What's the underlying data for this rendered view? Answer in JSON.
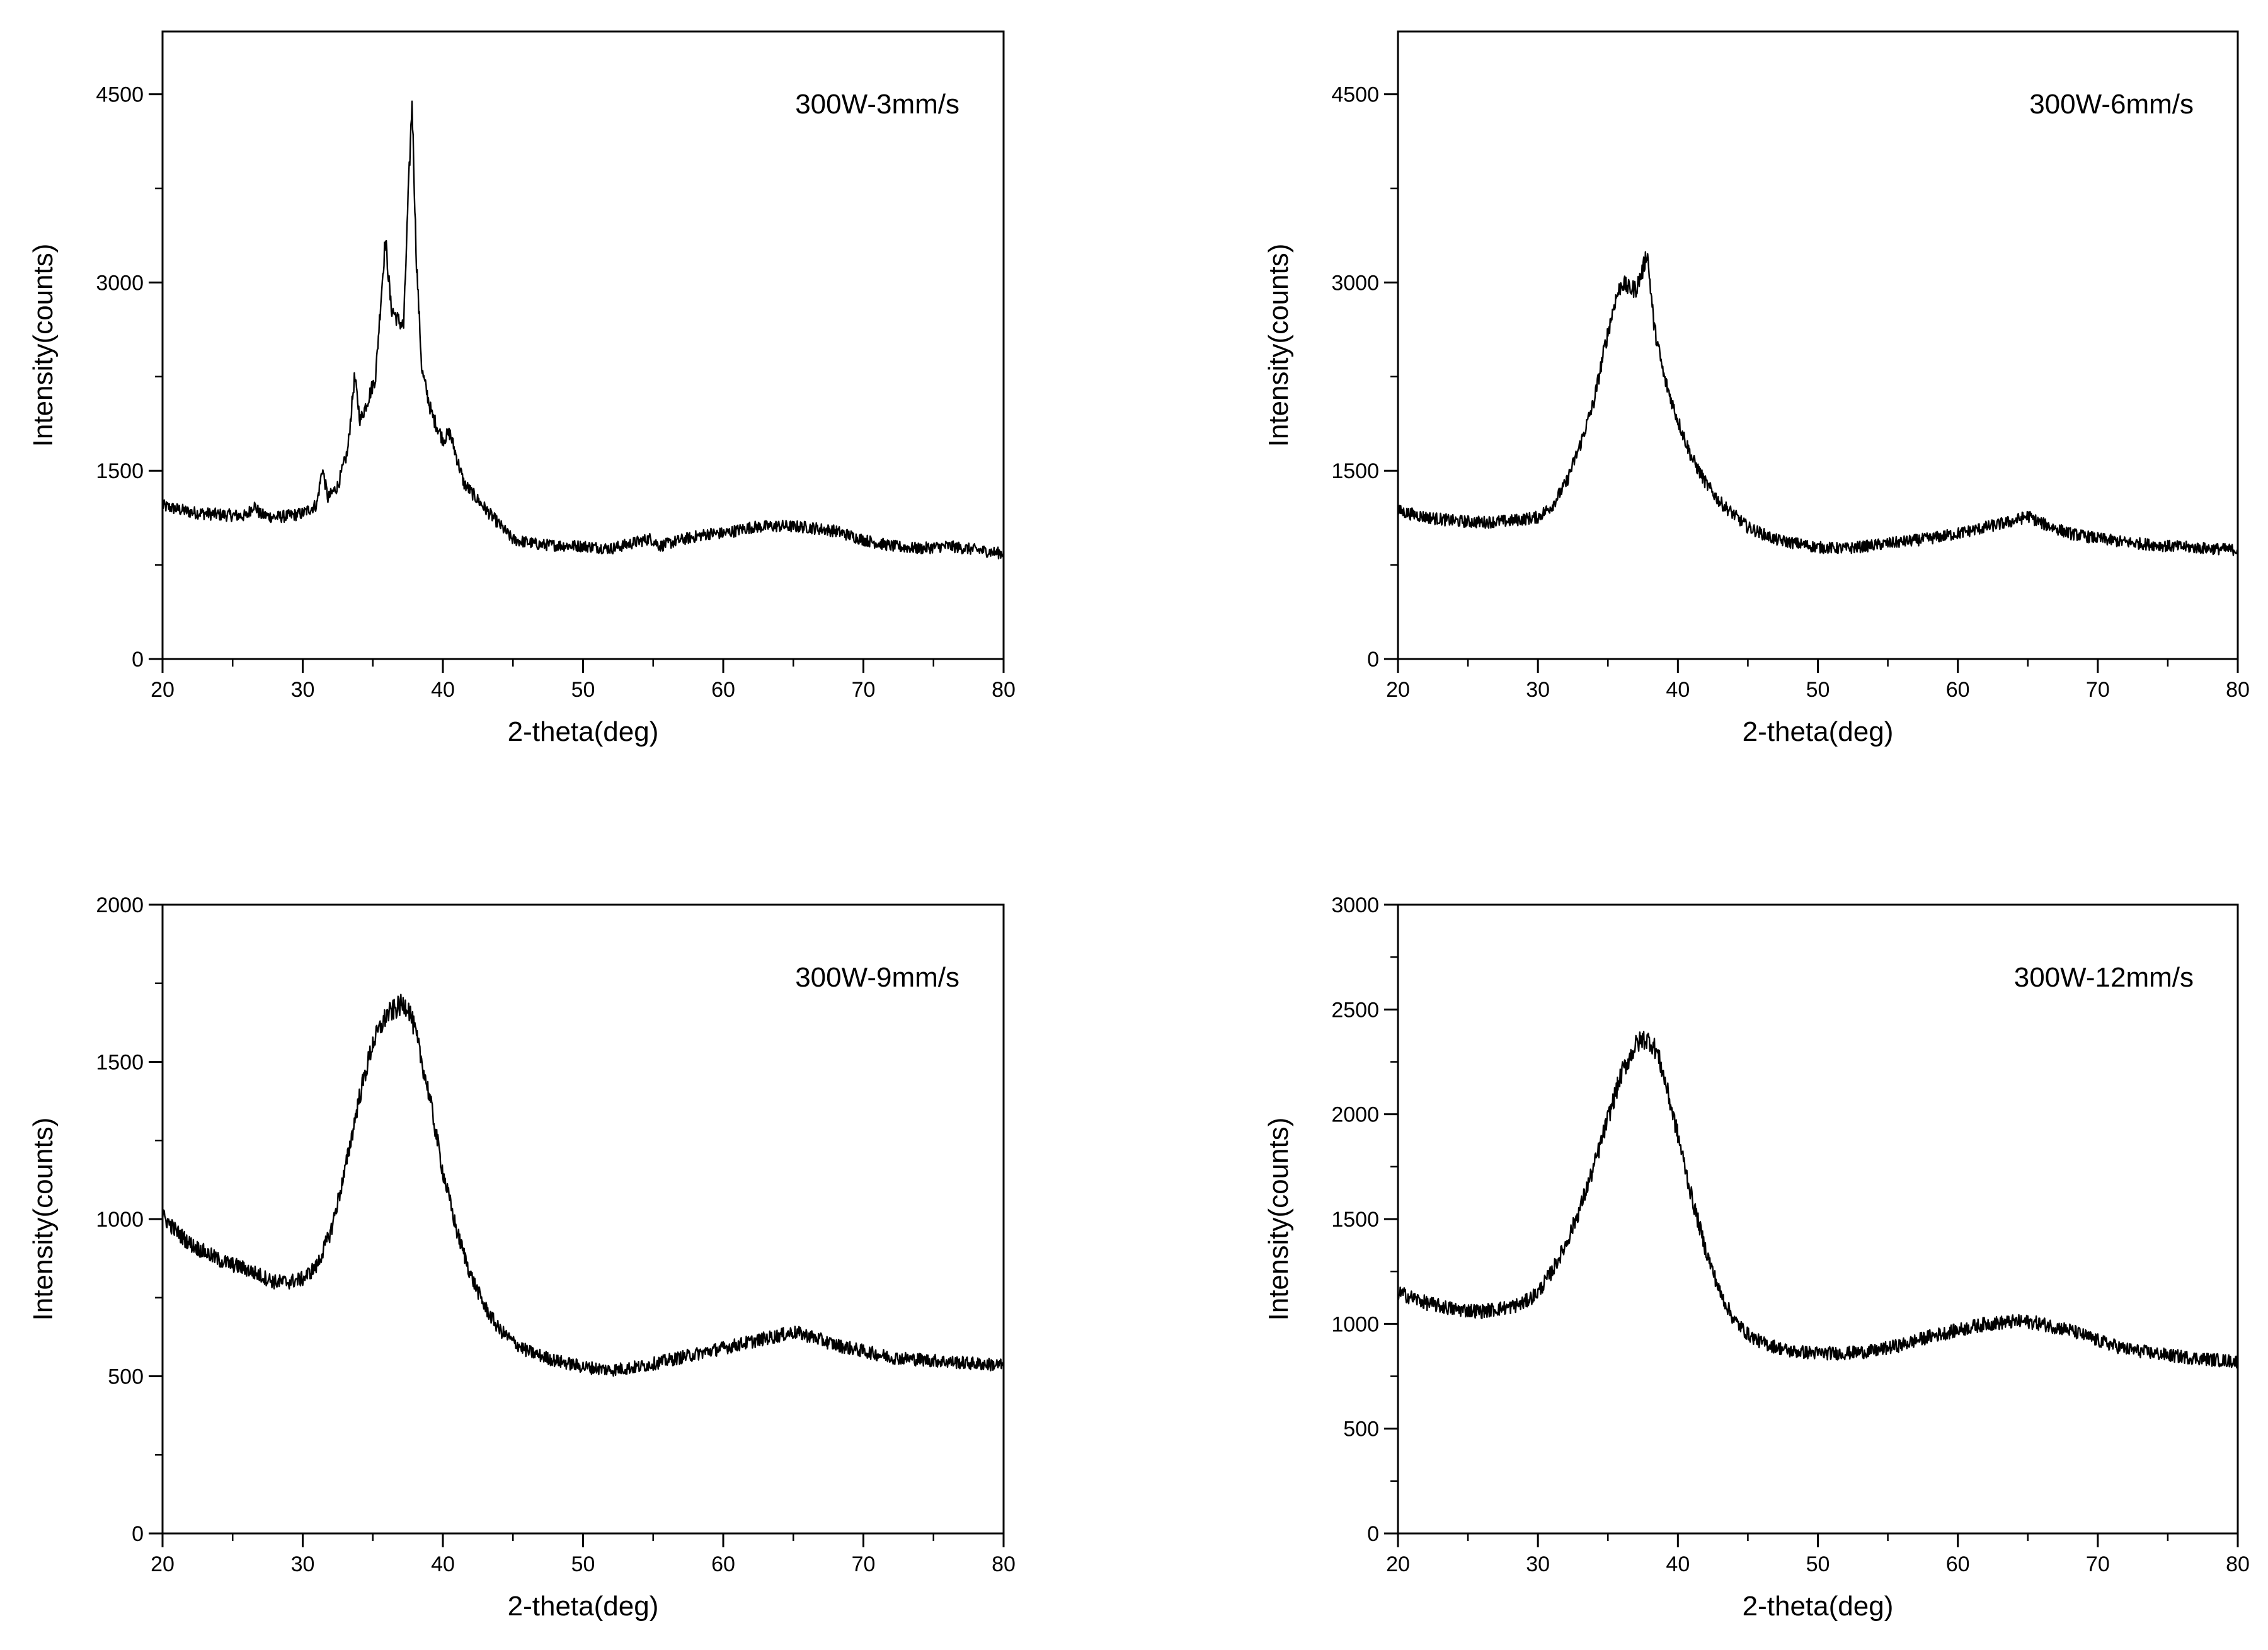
{
  "chart_data": [
    {
      "type": "line",
      "annotation": "300W-3mm/s",
      "xlabel": "2-theta(deg)",
      "ylabel": "Intensity(counts)",
      "xlim": [
        20,
        80
      ],
      "ylim": [
        0,
        5000
      ],
      "xticks": [
        20,
        30,
        40,
        50,
        60,
        70,
        80
      ],
      "yticks": [
        0,
        1500,
        3000,
        4500
      ],
      "xminor": 5,
      "yminor": 750,
      "grid": false,
      "series": [
        {
          "x": [
            20,
            22,
            24,
            26,
            26.5,
            27,
            28,
            29,
            30,
            31,
            31.4,
            31.8,
            32.5,
            33.2,
            33.7,
            34.1,
            34.6,
            35.2,
            35.6,
            35.9,
            36.3,
            36.8,
            37.2,
            37.5,
            37.8,
            38.1,
            38.5,
            39.2,
            40,
            40.5,
            41.5,
            43,
            45,
            47,
            50,
            52,
            54.8,
            55.5,
            57,
            59,
            60,
            62,
            64,
            66,
            68,
            70,
            72,
            74,
            76,
            78,
            80
          ],
          "y": [
            1220,
            1170,
            1150,
            1140,
            1230,
            1150,
            1130,
            1140,
            1160,
            1230,
            1520,
            1280,
            1380,
            1650,
            2250,
            1900,
            2050,
            2250,
            2900,
            3350,
            2800,
            2700,
            2650,
            3600,
            4450,
            3200,
            2300,
            1950,
            1750,
            1800,
            1400,
            1200,
            950,
            910,
            900,
            880,
            960,
            900,
            950,
            1000,
            1000,
            1050,
            1060,
            1050,
            1020,
            950,
            900,
            880,
            900,
            870,
            840
          ]
        }
      ]
    },
    {
      "type": "line",
      "annotation": "300W-6mm/s",
      "xlabel": "2-theta(deg)",
      "ylabel": "Intensity(counts)",
      "xlim": [
        20,
        80
      ],
      "ylim": [
        0,
        5000
      ],
      "xticks": [
        20,
        30,
        40,
        50,
        60,
        70,
        80
      ],
      "yticks": [
        0,
        1500,
        3000,
        4500
      ],
      "xminor": 5,
      "yminor": 750,
      "grid": false,
      "series": [
        {
          "x": [
            20,
            22,
            24,
            26,
            28,
            30,
            31,
            32,
            33,
            34,
            34.8,
            35.5,
            36,
            36.5,
            37,
            37.5,
            37.8,
            38.3,
            39,
            40,
            41,
            42,
            43,
            44,
            45,
            47,
            50,
            52,
            55,
            58,
            60,
            62,
            64,
            65,
            66,
            68,
            70,
            72,
            75,
            78,
            80
          ],
          "y": [
            1180,
            1130,
            1100,
            1090,
            1100,
            1130,
            1220,
            1400,
            1700,
            2050,
            2500,
            2850,
            3000,
            2950,
            2950,
            3100,
            3250,
            2650,
            2250,
            1900,
            1600,
            1400,
            1250,
            1150,
            1050,
            950,
            890,
            880,
            920,
            960,
            1000,
            1050,
            1100,
            1140,
            1080,
            1000,
            960,
            930,
            900,
            880,
            870
          ]
        }
      ]
    },
    {
      "type": "line",
      "annotation": "300W-9mm/s",
      "xlabel": "2-theta(deg)",
      "ylabel": "Intensity(counts)",
      "xlim": [
        20,
        80
      ],
      "ylim": [
        0,
        2000
      ],
      "xticks": [
        20,
        30,
        40,
        50,
        60,
        70,
        80
      ],
      "yticks": [
        0,
        500,
        1000,
        1500,
        2000
      ],
      "xminor": 5,
      "yminor": 250,
      "grid": false,
      "series": [
        {
          "x": [
            20,
            21,
            22,
            24,
            26,
            28,
            29,
            30,
            31,
            32,
            33,
            34,
            35,
            36,
            37,
            37.5,
            38,
            39,
            40,
            41,
            42,
            43,
            44,
            45,
            46,
            48,
            50,
            52,
            54,
            56,
            58,
            60,
            62,
            64,
            65,
            66,
            68,
            70,
            72,
            75,
            78,
            80
          ],
          "y": [
            1010,
            960,
            920,
            870,
            840,
            800,
            800,
            810,
            850,
            960,
            1150,
            1380,
            1560,
            1650,
            1680,
            1680,
            1600,
            1400,
            1150,
            960,
            820,
            720,
            650,
            610,
            580,
            550,
            530,
            520,
            530,
            550,
            570,
            590,
            610,
            630,
            640,
            630,
            600,
            580,
            560,
            550,
            540,
            535
          ]
        }
      ]
    },
    {
      "type": "line",
      "annotation": "300W-12mm/s",
      "xlabel": "2-theta(deg)",
      "ylabel": "Intensity(counts)",
      "xlim": [
        20,
        80
      ],
      "ylim": [
        0,
        3000
      ],
      "xticks": [
        20,
        30,
        40,
        50,
        60,
        70,
        80
      ],
      "yticks": [
        0,
        500,
        1000,
        1500,
        2000,
        2500,
        3000
      ],
      "xminor": 5,
      "yminor": 250,
      "grid": false,
      "series": [
        {
          "x": [
            20,
            22,
            24,
            26,
            28,
            29,
            30,
            31,
            32,
            33,
            34,
            35,
            36,
            37,
            37.5,
            38,
            38.5,
            39,
            40,
            41,
            42,
            43,
            44,
            45,
            46,
            48,
            50,
            52,
            54,
            56,
            58,
            60,
            62,
            64,
            65,
            66,
            68,
            70,
            72,
            75,
            78,
            80
          ],
          "y": [
            1150,
            1100,
            1070,
            1060,
            1080,
            1100,
            1150,
            1250,
            1380,
            1550,
            1750,
            1980,
            2200,
            2330,
            2360,
            2350,
            2300,
            2180,
            1900,
            1600,
            1350,
            1150,
            1020,
            950,
            910,
            870,
            860,
            860,
            870,
            900,
            940,
            970,
            1000,
            1010,
            1010,
            1000,
            970,
            920,
            880,
            850,
            830,
            820
          ]
        }
      ]
    }
  ]
}
